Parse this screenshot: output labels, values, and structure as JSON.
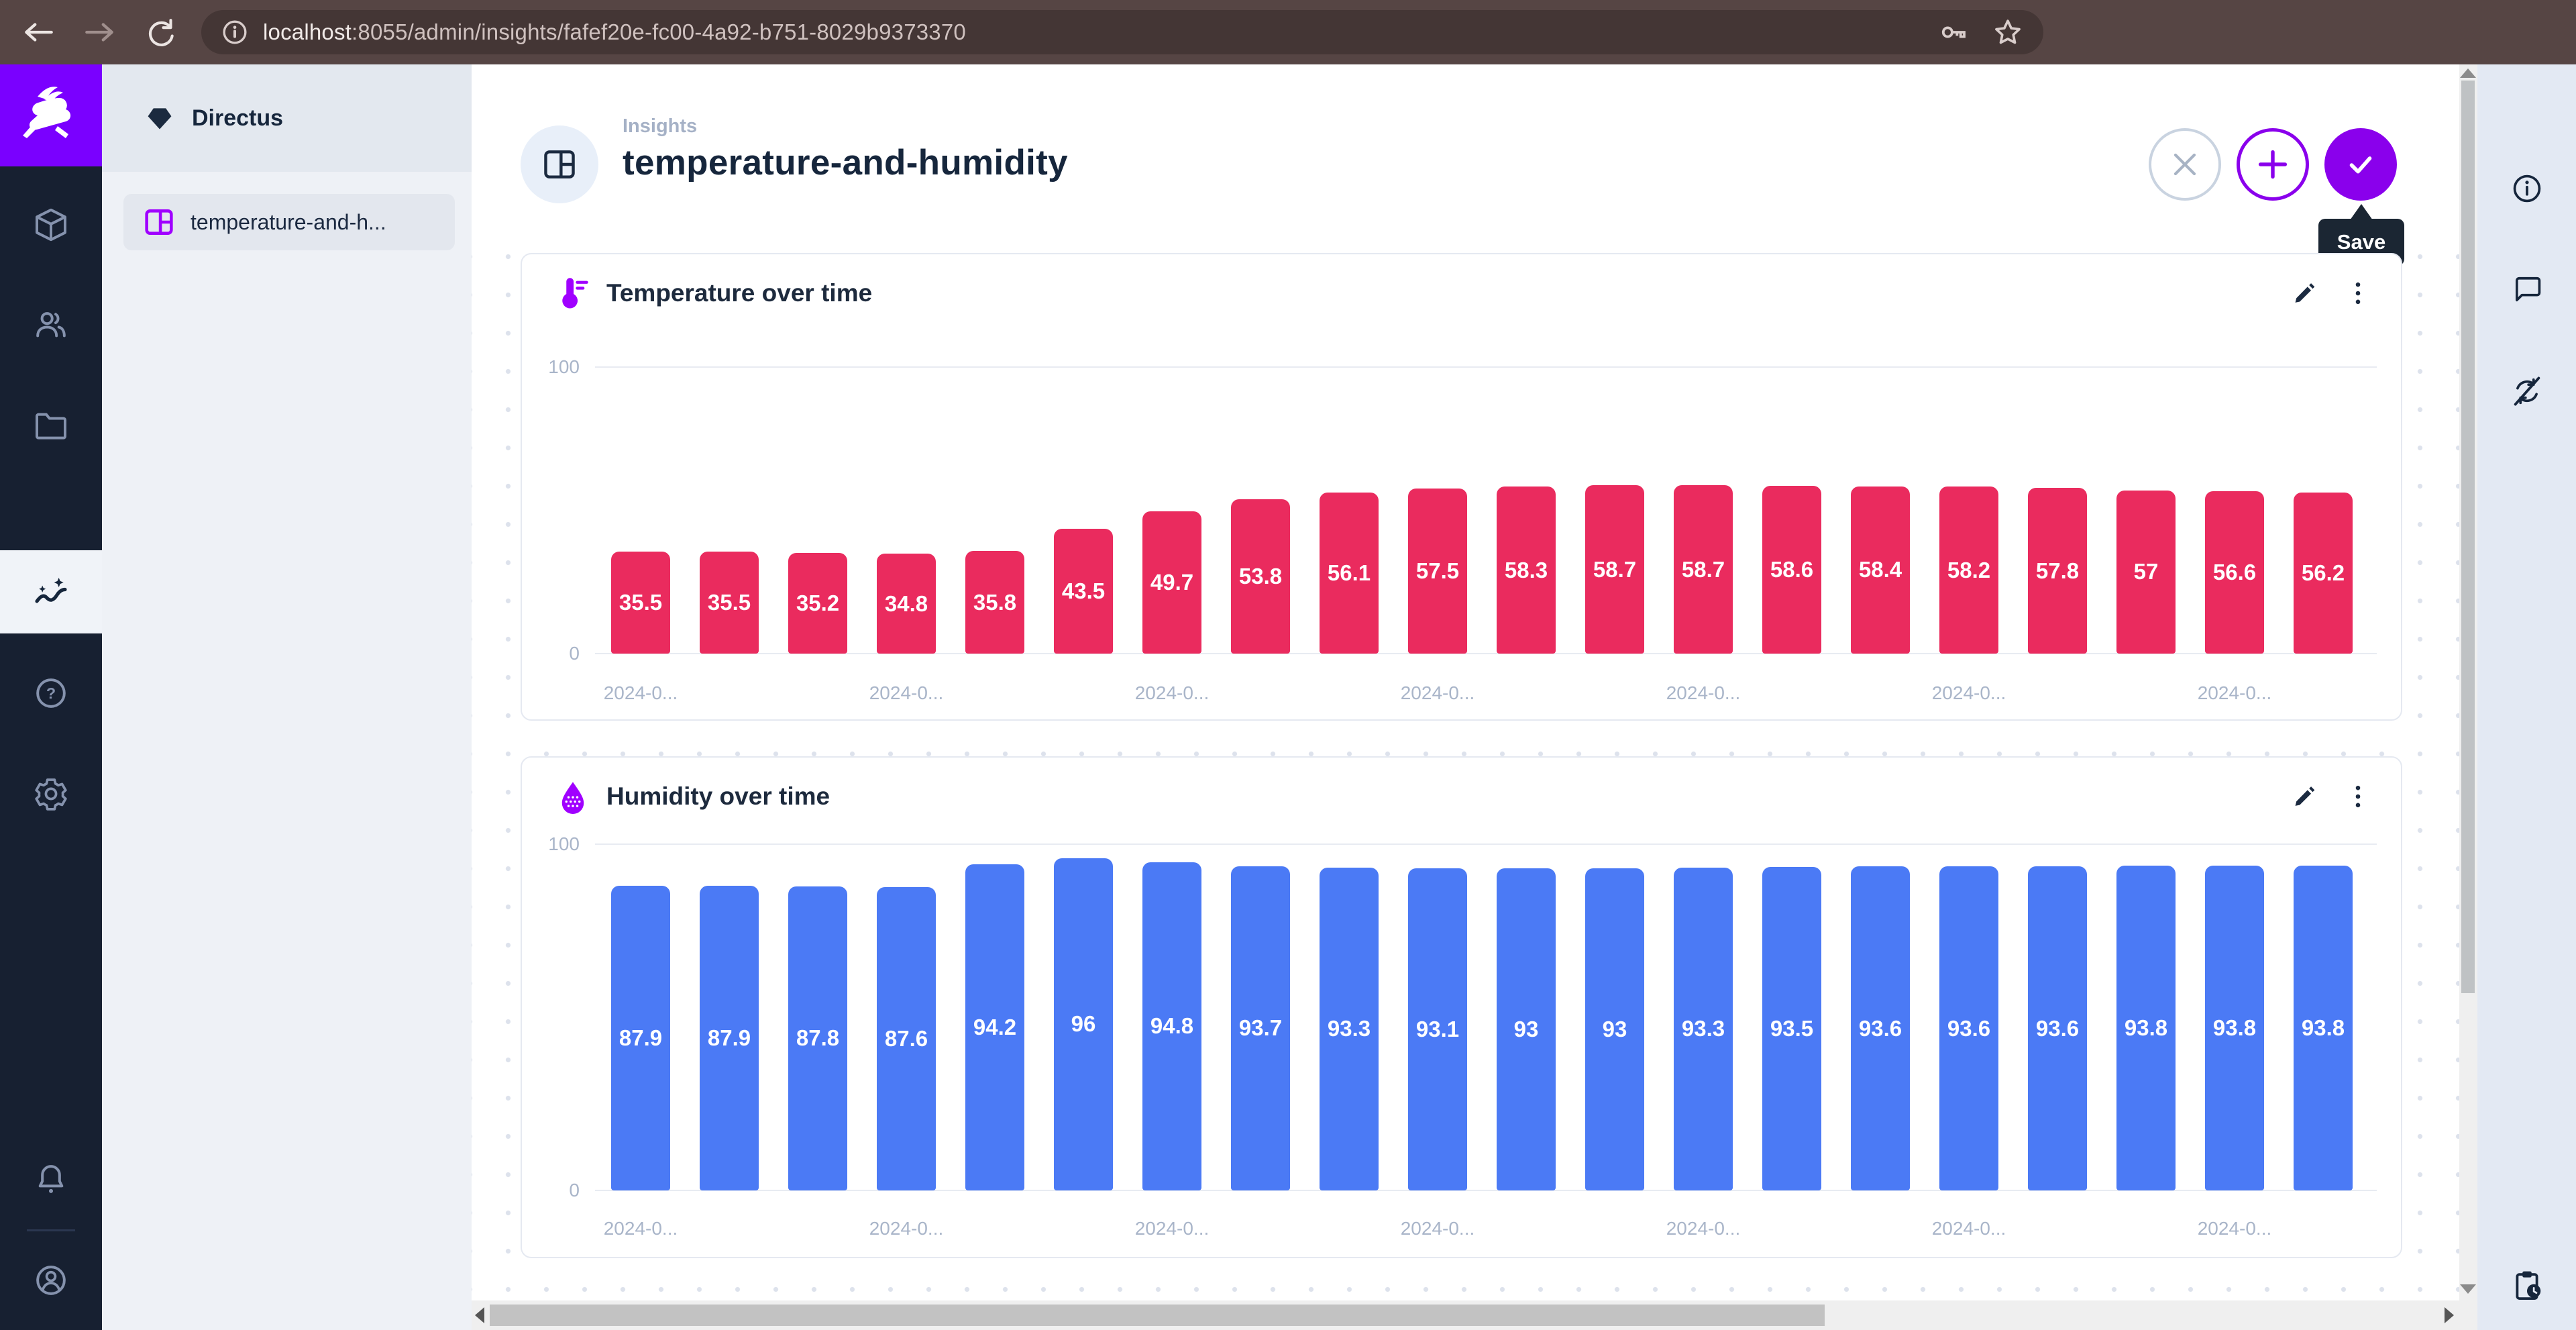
{
  "browser": {
    "url_host": "localhost",
    "url_path": ":8055/admin/insights/fafef20e-fc00-4a92-b751-8029b9373370"
  },
  "nav": {
    "project_name": "Directus",
    "items": [
      {
        "label": "temperature-and-h..."
      }
    ]
  },
  "header": {
    "breadcrumb": "Insights",
    "title": "temperature-and-humidity",
    "save_tooltip": "Save"
  },
  "icons": {
    "module_bar": [
      "content",
      "users",
      "files",
      "insights",
      "help",
      "settings",
      "notifications",
      "account"
    ],
    "right_sidebar": [
      "info",
      "comments",
      "auto-refresh-off",
      "clipboard-clock"
    ],
    "browser": [
      "back",
      "forward",
      "reload",
      "page-info",
      "password-key",
      "bookmark-star"
    ]
  },
  "colors": {
    "accent_purple": "#8A00EC",
    "logo_bg": "#7A00FF",
    "module_bar_bg": "#172031",
    "tooltip_bg": "#1B2633",
    "temperature_bar": "#EA2B5E",
    "humidity_bar": "#4B7AF5"
  },
  "chart_data": [
    {
      "type": "bar",
      "title": "Temperature over time",
      "icon": "thermometer-icon",
      "values": [
        35.5,
        35.5,
        35.2,
        34.8,
        35.8,
        43.5,
        49.7,
        53.8,
        56.1,
        57.5,
        58.3,
        58.7,
        58.7,
        58.6,
        58.4,
        58.2,
        57.8,
        57,
        56.6,
        56.2
      ],
      "color": "#EA2B5E",
      "ylim": [
        0,
        100
      ],
      "yticks": [
        "100",
        "0"
      ],
      "x_tick_label": "2024-0...",
      "x_tick_positions": [
        0,
        3,
        6,
        9,
        12,
        15,
        18
      ],
      "legend": "none",
      "grid": "top-and-baseline"
    },
    {
      "type": "bar",
      "title": "Humidity over time",
      "icon": "humidity-drop-icon",
      "values": [
        87.9,
        87.9,
        87.8,
        87.6,
        94.2,
        96,
        94.8,
        93.7,
        93.3,
        93.1,
        93,
        93,
        93.3,
        93.5,
        93.6,
        93.6,
        93.6,
        93.8,
        93.8,
        93.8
      ],
      "color": "#4B7AF5",
      "ylim": [
        0,
        100
      ],
      "yticks": [
        "100",
        "0"
      ],
      "x_tick_label": "2024-0...",
      "x_tick_positions": [
        0,
        3,
        6,
        9,
        12,
        15,
        18
      ],
      "legend": "none",
      "grid": "top-and-baseline"
    }
  ]
}
